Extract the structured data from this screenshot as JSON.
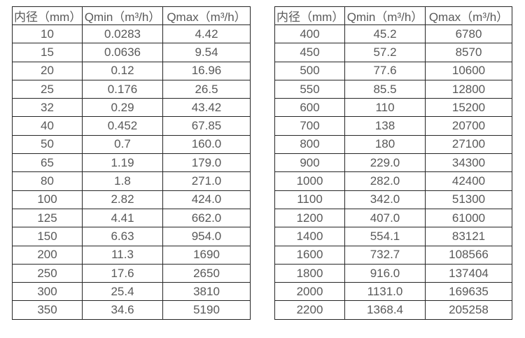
{
  "colors": {
    "background": "#ffffff",
    "border": "#262626",
    "text": "#595959"
  },
  "tables": [
    {
      "name": "flow-spec-small-diameters",
      "headers": [
        "内径（mm）",
        "Qmin（m³/h）",
        "Qmax（m³/h）"
      ],
      "rows": [
        [
          "10",
          "0.0283",
          "4.42"
        ],
        [
          "15",
          "0.0636",
          "9.54"
        ],
        [
          "20",
          "0.12",
          "16.96"
        ],
        [
          "25",
          "0.176",
          "26.5"
        ],
        [
          "32",
          "0.29",
          "43.42"
        ],
        [
          "40",
          "0.452",
          "67.85"
        ],
        [
          "50",
          "0.7",
          "160.0"
        ],
        [
          "65",
          "1.19",
          "179.0"
        ],
        [
          "80",
          "1.8",
          "271.0"
        ],
        [
          "100",
          "2.82",
          "424.0"
        ],
        [
          "125",
          "4.41",
          "662.0"
        ],
        [
          "150",
          "6.63",
          "954.0"
        ],
        [
          "200",
          "11.3",
          "1690"
        ],
        [
          "250",
          "17.6",
          "2650"
        ],
        [
          "300",
          "25.4",
          "3810"
        ],
        [
          "350",
          "34.6",
          "5190"
        ]
      ]
    },
    {
      "name": "flow-spec-large-diameters",
      "headers": [
        "内径（mm）",
        "Qmin（m³/h）",
        "Qmax（m³/h）"
      ],
      "rows": [
        [
          "400",
          "45.2",
          "6780"
        ],
        [
          "450",
          "57.2",
          "8570"
        ],
        [
          "500",
          "77.6",
          "10600"
        ],
        [
          "550",
          "85.5",
          "12800"
        ],
        [
          "600",
          "110",
          "15200"
        ],
        [
          "700",
          "138",
          "20700"
        ],
        [
          "800",
          "180",
          "27100"
        ],
        [
          "900",
          "229.0",
          "34300"
        ],
        [
          "1000",
          "282.0",
          "42400"
        ],
        [
          "1100",
          "342.0",
          "51300"
        ],
        [
          "1200",
          "407.0",
          "61000"
        ],
        [
          "1400",
          "554.1",
          "83121"
        ],
        [
          "1600",
          "732.7",
          "108566"
        ],
        [
          "1800",
          "916.0",
          "137404"
        ],
        [
          "2000",
          "1131.0",
          "169635"
        ],
        [
          "2200",
          "1368.4",
          "205258"
        ]
      ]
    }
  ]
}
